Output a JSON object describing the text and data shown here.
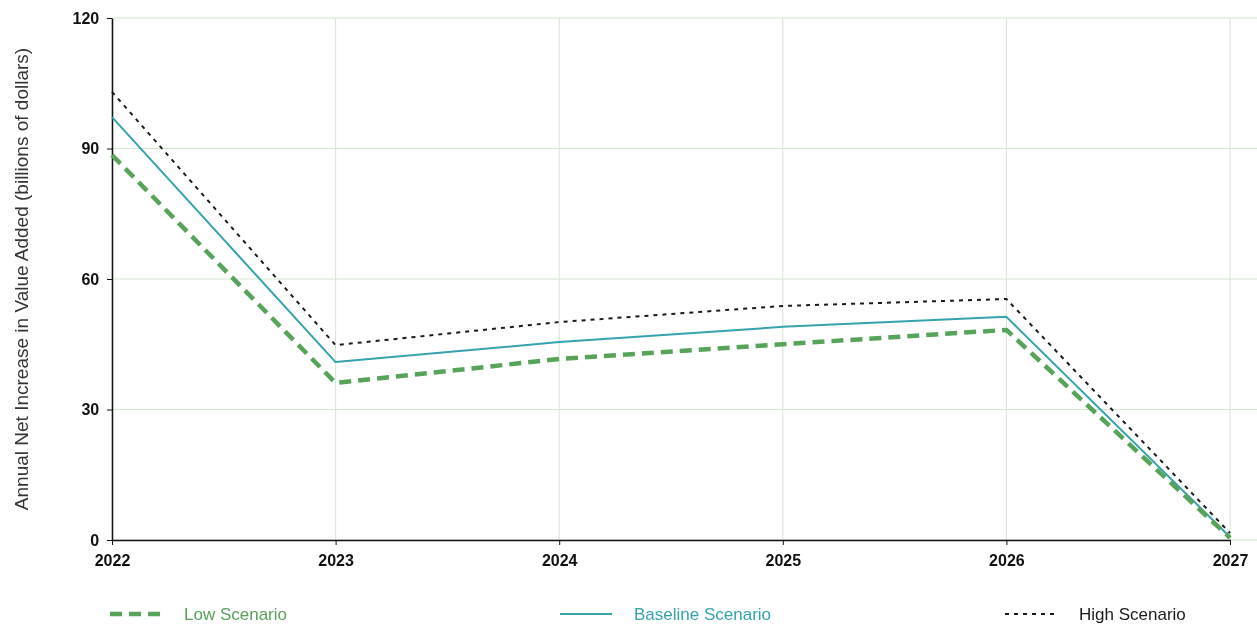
{
  "chart_data": {
    "type": "line",
    "ylabel": "Annual Net Increase in Value Added (billions of dollars)",
    "x": [
      2022,
      2023,
      2024,
      2025,
      2026,
      2027
    ],
    "xlim": [
      2022,
      2027
    ],
    "xticks": [
      2022,
      2023,
      2024,
      2025,
      2026,
      2027
    ],
    "ylim": [
      0,
      120
    ],
    "yticks": [
      0,
      30,
      60,
      90,
      120
    ],
    "grid": true,
    "legend": "bottom",
    "marker": "none",
    "series": [
      {
        "name": "Low Scenario",
        "color": "#57a35a",
        "line_style": "dashed",
        "values": [
          88.5,
          36.1,
          41.6,
          45,
          48.3,
          0.5
        ]
      },
      {
        "name": "Baseline Scenario",
        "color": "#35a3ad",
        "line_style": "solid",
        "values": [
          97.2,
          40.9,
          45.5,
          49,
          51.3,
          0.7
        ]
      },
      {
        "name": "High Scenario",
        "color": "#1a1a1a",
        "line_style": "dotted",
        "values": [
          103,
          44.8,
          50.1,
          53.8,
          55.4,
          1.6
        ]
      }
    ]
  }
}
